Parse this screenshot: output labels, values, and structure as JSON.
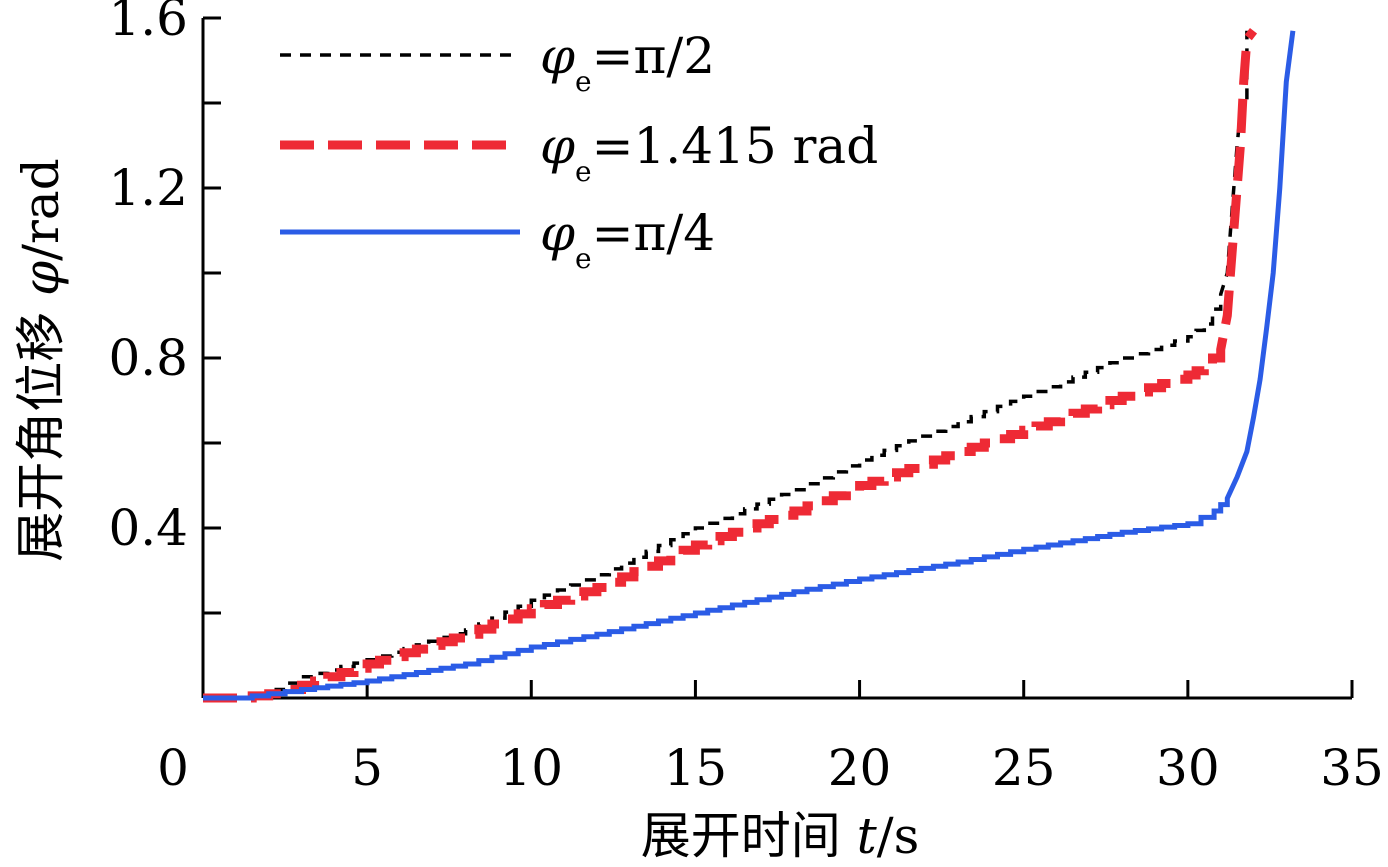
{
  "chart_data": {
    "type": "line",
    "xlabel": {
      "prefix": "展开时间 ",
      "var": "t",
      "unit": "/s"
    },
    "ylabel": {
      "prefix": "展开角位移 ",
      "var": "φ",
      "unit": "/rad"
    },
    "xlim": [
      0,
      35
    ],
    "ylim": [
      0,
      1.6
    ],
    "x_ticks": [
      0,
      5,
      10,
      15,
      20,
      25,
      30,
      35
    ],
    "x_tick_labels": [
      "0",
      "5",
      "10",
      "15",
      "20",
      "25",
      "30",
      "35"
    ],
    "y_ticks": [
      0.4,
      0.8,
      1.2,
      1.6
    ],
    "y_tick_labels": [
      "0.4",
      "0.8",
      "1.2",
      "1.6"
    ],
    "y_minor_ticks": [
      0.2,
      0.6,
      1.0,
      1.4
    ],
    "legend_position": "top-left",
    "series": [
      {
        "name": "φe=π/2",
        "legend": {
          "sym": "φ",
          "sub": "e",
          "rest": "=π/2"
        },
        "color": "#000000",
        "style": "short-dash",
        "x": [
          0,
          1,
          2,
          3,
          5,
          8,
          10,
          12,
          15,
          18,
          20,
          23,
          25,
          28,
          30,
          30.5,
          31,
          31.2,
          31.3,
          31.4,
          31.5,
          31.6,
          31.8,
          31.8
        ],
        "y": [
          0,
          0,
          0.02,
          0.05,
          0.09,
          0.16,
          0.23,
          0.29,
          0.4,
          0.49,
          0.56,
          0.65,
          0.71,
          0.8,
          0.85,
          0.88,
          0.95,
          1.0,
          1.1,
          1.2,
          1.3,
          1.38,
          1.4,
          1.57
        ]
      },
      {
        "name": "φe=1.415 rad",
        "legend": {
          "sym": "φ",
          "sub": "e",
          "rest": "=1.415 rad"
        },
        "color": "#ee2a35",
        "style": "long-dash",
        "x": [
          0,
          1,
          2,
          3,
          5,
          8,
          10,
          12,
          15,
          18,
          20,
          23,
          25,
          28,
          30,
          30.5,
          31,
          31.2,
          31.3,
          31.4,
          31.6,
          31.7,
          31.8,
          32
        ],
        "y": [
          0,
          0,
          0.01,
          0.03,
          0.08,
          0.15,
          0.21,
          0.26,
          0.36,
          0.44,
          0.5,
          0.58,
          0.63,
          0.71,
          0.76,
          0.78,
          0.82,
          0.9,
          1.0,
          1.1,
          1.3,
          1.45,
          1.55,
          1.57
        ]
      },
      {
        "name": "φe=π/4",
        "legend": {
          "sym": "φ",
          "sub": "e",
          "rest": "=π/4"
        },
        "color": "#2b5ce6",
        "style": "solid",
        "x": [
          0,
          1,
          2,
          3,
          5,
          8,
          10,
          12,
          15,
          18,
          20,
          23,
          25,
          28,
          30,
          30.8,
          31.2,
          31.5,
          31.8,
          32.0,
          32.2,
          32.4,
          32.6,
          32.8,
          33.0,
          33.2
        ],
        "y": [
          0,
          0,
          0.01,
          0.02,
          0.04,
          0.08,
          0.12,
          0.15,
          0.2,
          0.25,
          0.28,
          0.32,
          0.35,
          0.39,
          0.41,
          0.44,
          0.47,
          0.52,
          0.58,
          0.66,
          0.75,
          0.87,
          1.0,
          1.2,
          1.45,
          1.57
        ]
      }
    ]
  }
}
